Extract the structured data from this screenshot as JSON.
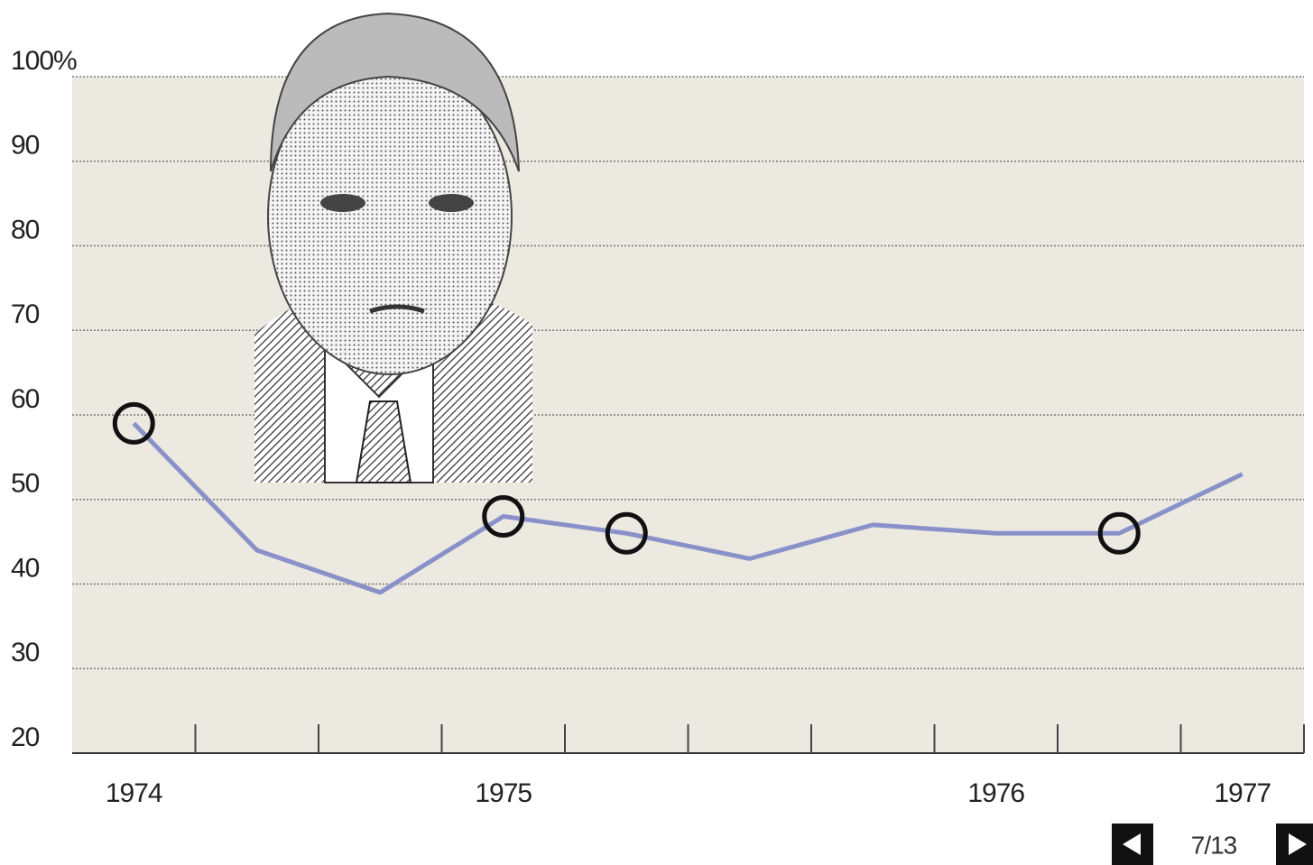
{
  "chart_data": {
    "type": "line",
    "categories": [
      "1974",
      null,
      null,
      "1975",
      null,
      null,
      null,
      "1976",
      null,
      "1977"
    ],
    "series": [
      {
        "name": null,
        "color": "#8a91c9",
        "values": [
          59,
          44,
          39,
          48,
          46,
          43,
          47,
          46,
          46,
          53
        ]
      }
    ],
    "highlights": [
      0,
      3,
      4,
      8
    ],
    "ylim": [
      20,
      100
    ],
    "yticks": [
      20,
      30,
      40,
      50,
      60,
      70,
      80,
      90,
      {
        "value": 100,
        "label": "100%"
      }
    ],
    "grid": true,
    "pager": {
      "label": "7/13"
    }
  }
}
